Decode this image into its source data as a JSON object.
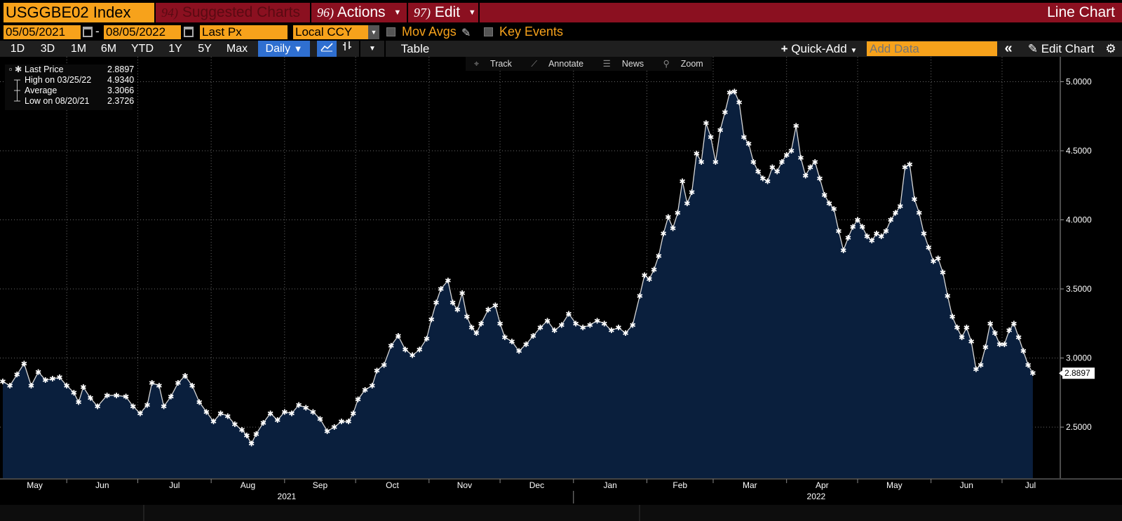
{
  "header": {
    "ticker": "USGGBE02 Index",
    "suggested": {
      "num": "94)",
      "label": "Suggested Charts"
    },
    "actions": {
      "num": "96)",
      "label": "Actions"
    },
    "edit": {
      "num": "97)",
      "label": "Edit"
    },
    "chart_type": "Line Chart"
  },
  "params": {
    "start_date": "05/05/2021",
    "date_sep": "-",
    "end_date": "08/05/2022",
    "field": "Last Px",
    "currency": "Local CCY",
    "mov_avgs": "Mov Avgs",
    "key_events": "Key Events"
  },
  "toolbar": {
    "ranges": [
      "1D",
      "3D",
      "1M",
      "6M",
      "YTD",
      "1Y",
      "5Y",
      "Max"
    ],
    "frequency": "Daily",
    "table": "Table",
    "quick_add": "Quick-Add",
    "add_data_placeholder": "Add Data",
    "edit_chart": "Edit Chart"
  },
  "chart_tools": [
    "Track",
    "Annotate",
    "News",
    "Zoom"
  ],
  "legend": [
    {
      "label": "Last Price",
      "value": "2.8897"
    },
    {
      "label": "High on 03/25/22",
      "value": "4.9340"
    },
    {
      "label": "Average",
      "value": "3.3066"
    },
    {
      "label": "Low on 08/20/21",
      "value": "2.3726"
    }
  ],
  "colors": {
    "bloomberg_orange": "#f7a21b",
    "header_red": "#8b1020",
    "area_fill": "#0a1f3d",
    "line": "#d8d8d8",
    "selected_blue": "#2f6fd0"
  },
  "chart_data": {
    "type": "area",
    "title": "USGGBE02 Index",
    "series": [
      {
        "name": "Last Price",
        "start_date": "2021-05-05",
        "end_date": "2022-08-05",
        "frequency": "Daily",
        "anchors": [
          [
            0,
            2.83
          ],
          [
            3,
            2.8
          ],
          [
            6,
            2.88
          ],
          [
            9,
            2.96
          ],
          [
            12,
            2.8
          ],
          [
            15,
            2.9
          ],
          [
            18,
            2.84
          ],
          [
            21,
            2.85
          ],
          [
            24,
            2.86
          ],
          [
            27,
            2.8
          ],
          [
            30,
            2.75
          ],
          [
            32,
            2.68
          ],
          [
            34,
            2.79
          ],
          [
            37,
            2.71
          ],
          [
            40,
            2.65
          ],
          [
            44,
            2.73
          ],
          [
            48,
            2.73
          ],
          [
            52,
            2.72
          ],
          [
            55,
            2.65
          ],
          [
            58,
            2.6
          ],
          [
            61,
            2.66
          ],
          [
            63,
            2.82
          ],
          [
            66,
            2.8
          ],
          [
            68,
            2.65
          ],
          [
            71,
            2.72
          ],
          [
            74,
            2.82
          ],
          [
            77,
            2.87
          ],
          [
            80,
            2.8
          ],
          [
            83,
            2.68
          ],
          [
            86,
            2.61
          ],
          [
            89,
            2.54
          ],
          [
            92,
            2.6
          ],
          [
            95,
            2.58
          ],
          [
            98,
            2.52
          ],
          [
            101,
            2.48
          ],
          [
            103,
            2.44
          ],
          [
            105,
            2.38
          ],
          [
            107,
            2.45
          ],
          [
            110,
            2.53
          ],
          [
            113,
            2.6
          ],
          [
            116,
            2.55
          ],
          [
            119,
            2.61
          ],
          [
            122,
            2.6
          ],
          [
            125,
            2.66
          ],
          [
            128,
            2.64
          ],
          [
            131,
            2.61
          ],
          [
            134,
            2.56
          ],
          [
            137,
            2.47
          ],
          [
            140,
            2.5
          ],
          [
            143,
            2.54
          ],
          [
            146,
            2.54
          ],
          [
            148,
            2.6
          ],
          [
            150,
            2.7
          ],
          [
            153,
            2.77
          ],
          [
            156,
            2.8
          ],
          [
            158,
            2.91
          ],
          [
            161,
            2.95
          ],
          [
            164,
            3.09
          ],
          [
            167,
            3.16
          ],
          [
            170,
            3.06
          ],
          [
            173,
            3.02
          ],
          [
            176,
            3.06
          ],
          [
            179,
            3.14
          ],
          [
            181,
            3.28
          ],
          [
            183,
            3.4
          ],
          [
            185,
            3.5
          ],
          [
            188,
            3.56
          ],
          [
            190,
            3.4
          ],
          [
            192,
            3.35
          ],
          [
            194,
            3.47
          ],
          [
            196,
            3.3
          ],
          [
            198,
            3.22
          ],
          [
            200,
            3.18
          ],
          [
            202,
            3.25
          ],
          [
            205,
            3.35
          ],
          [
            208,
            3.38
          ],
          [
            210,
            3.25
          ],
          [
            212,
            3.15
          ],
          [
            215,
            3.12
          ],
          [
            218,
            3.05
          ],
          [
            221,
            3.1
          ],
          [
            224,
            3.16
          ],
          [
            227,
            3.22
          ],
          [
            230,
            3.27
          ],
          [
            233,
            3.2
          ],
          [
            236,
            3.24
          ],
          [
            239,
            3.32
          ],
          [
            242,
            3.25
          ],
          [
            245,
            3.22
          ],
          [
            248,
            3.24
          ],
          [
            251,
            3.27
          ],
          [
            254,
            3.25
          ],
          [
            257,
            3.2
          ],
          [
            260,
            3.22
          ],
          [
            263,
            3.18
          ],
          [
            266,
            3.24
          ],
          [
            269,
            3.45
          ],
          [
            271,
            3.6
          ],
          [
            273,
            3.57
          ],
          [
            275,
            3.64
          ],
          [
            277,
            3.74
          ],
          [
            279,
            3.9
          ],
          [
            281,
            4.02
          ],
          [
            283,
            3.94
          ],
          [
            285,
            4.05
          ],
          [
            287,
            4.28
          ],
          [
            289,
            4.12
          ],
          [
            291,
            4.2
          ],
          [
            293,
            4.48
          ],
          [
            295,
            4.42
          ],
          [
            297,
            4.7
          ],
          [
            299,
            4.6
          ],
          [
            301,
            4.42
          ],
          [
            303,
            4.65
          ],
          [
            305,
            4.78
          ],
          [
            307,
            4.92
          ],
          [
            309,
            4.93
          ],
          [
            311,
            4.85
          ],
          [
            313,
            4.6
          ],
          [
            315,
            4.55
          ],
          [
            317,
            4.42
          ],
          [
            319,
            4.35
          ],
          [
            321,
            4.3
          ],
          [
            323,
            4.28
          ],
          [
            325,
            4.38
          ],
          [
            327,
            4.35
          ],
          [
            329,
            4.42
          ],
          [
            331,
            4.47
          ],
          [
            333,
            4.5
          ],
          [
            335,
            4.68
          ],
          [
            337,
            4.45
          ],
          [
            339,
            4.32
          ],
          [
            341,
            4.38
          ],
          [
            343,
            4.42
          ],
          [
            345,
            4.3
          ],
          [
            347,
            4.18
          ],
          [
            349,
            4.12
          ],
          [
            351,
            4.08
          ],
          [
            353,
            3.92
          ],
          [
            355,
            3.78
          ],
          [
            357,
            3.87
          ],
          [
            359,
            3.95
          ],
          [
            361,
            4.0
          ],
          [
            363,
            3.95
          ],
          [
            365,
            3.88
          ],
          [
            367,
            3.85
          ],
          [
            369,
            3.9
          ],
          [
            371,
            3.88
          ],
          [
            373,
            3.92
          ],
          [
            375,
            4.0
          ],
          [
            377,
            4.05
          ],
          [
            379,
            4.1
          ],
          [
            381,
            4.38
          ],
          [
            383,
            4.4
          ],
          [
            385,
            4.15
          ],
          [
            387,
            4.05
          ],
          [
            389,
            3.9
          ],
          [
            391,
            3.8
          ],
          [
            393,
            3.7
          ],
          [
            395,
            3.72
          ],
          [
            397,
            3.62
          ],
          [
            399,
            3.45
          ],
          [
            401,
            3.3
          ],
          [
            403,
            3.22
          ],
          [
            405,
            3.15
          ],
          [
            407,
            3.22
          ],
          [
            409,
            3.12
          ],
          [
            411,
            2.92
          ],
          [
            413,
            2.95
          ],
          [
            415,
            3.08
          ],
          [
            417,
            3.25
          ],
          [
            419,
            3.18
          ],
          [
            421,
            3.1
          ],
          [
            423,
            3.1
          ],
          [
            425,
            3.2
          ],
          [
            427,
            3.25
          ],
          [
            429,
            3.15
          ],
          [
            431,
            3.05
          ],
          [
            433,
            2.95
          ],
          [
            435,
            2.89
          ]
        ]
      }
    ],
    "x_axis": {
      "months": [
        "May",
        "Jun",
        "Jul",
        "Aug",
        "Sep",
        "Oct",
        "Nov",
        "Dec",
        "Jan",
        "Feb",
        "Mar",
        "Apr",
        "May",
        "Jun",
        "Jul"
      ],
      "years": [
        "2021",
        "2022"
      ]
    },
    "y_axis": {
      "ticks": [
        2.5,
        3.0,
        3.5,
        4.0,
        4.5,
        5.0
      ],
      "tick_labels": [
        "2.5000",
        "3.0000",
        "3.5000",
        "4.0000",
        "4.5000",
        "5.0000"
      ],
      "ylim": [
        2.13,
        5.18
      ],
      "position": "right"
    },
    "last_value_label": "2.8897",
    "legend_position": "top-left",
    "grid": true
  }
}
